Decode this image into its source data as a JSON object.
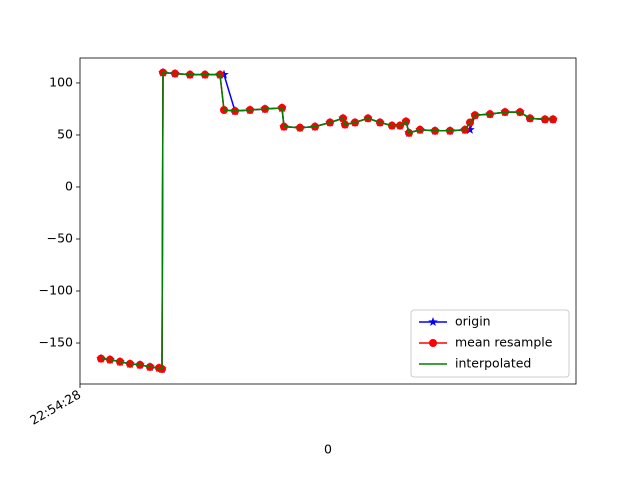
{
  "chart_data": {
    "type": "line",
    "xlabel": "0",
    "x": [
      2.1,
      3.0,
      4.0,
      5.0,
      6.0,
      7.0,
      7.9,
      8.2,
      8.3,
      9.5,
      11.0,
      12.5,
      14.0,
      14.4,
      15.5,
      17.0,
      18.5,
      20.2,
      20.4,
      22.0,
      23.5,
      25.0,
      26.3,
      26.5,
      27.5,
      28.8,
      30.0,
      31.2,
      32.0,
      32.6,
      32.9,
      34.0,
      35.5,
      37.0,
      38.5,
      39.0,
      39.5,
      41.0,
      42.5,
      44.0,
      45.0,
      46.5,
      47.3
    ],
    "series": [
      {
        "name": "origin",
        "color": "#0000ff",
        "marker": "star",
        "values": [
          -165,
          -166,
          -168,
          -170,
          -171,
          -173,
          -174,
          -175,
          110,
          109,
          108,
          108,
          108,
          108,
          73,
          74,
          75,
          76,
          58,
          57,
          58,
          62,
          66,
          60,
          62,
          66,
          62,
          59,
          59,
          63,
          52,
          55,
          54,
          54,
          55,
          55,
          69,
          70,
          72,
          72,
          66,
          65,
          65
        ]
      },
      {
        "name": "mean resample",
        "color": "#ff0000",
        "marker": "circle",
        "values": [
          -165,
          -166,
          -168,
          -170,
          -171,
          -173,
          -174,
          -175,
          110,
          109,
          108,
          108,
          108,
          74,
          73,
          74,
          75,
          76,
          58,
          57,
          58,
          62,
          66,
          60,
          62,
          66,
          62,
          59,
          59,
          63,
          52,
          55,
          54,
          54,
          55,
          62,
          69,
          70,
          72,
          72,
          66,
          65,
          65
        ]
      },
      {
        "name": "interpolated",
        "color": "#008000",
        "marker": "none",
        "values": [
          -165,
          -166,
          -168,
          -170,
          -171,
          -173,
          -174,
          -175,
          110,
          109,
          108,
          108,
          108,
          74,
          73,
          74,
          75,
          76,
          58,
          57,
          58,
          62,
          66,
          60,
          62,
          66,
          62,
          59,
          59,
          63,
          52,
          55,
          54,
          54,
          55,
          62,
          69,
          70,
          72,
          72,
          66,
          65,
          65
        ]
      }
    ],
    "xlim": [
      0,
      49.6
    ],
    "xticks": [
      {
        "value": 0,
        "label": "22:54:28"
      }
    ],
    "ylim": [
      -189.4,
      124
    ],
    "yticks": [
      {
        "value": -150,
        "label": "−150"
      },
      {
        "value": -100,
        "label": "−100"
      },
      {
        "value": -50,
        "label": "−50"
      },
      0,
      50,
      100
    ],
    "legend": "lower right"
  }
}
